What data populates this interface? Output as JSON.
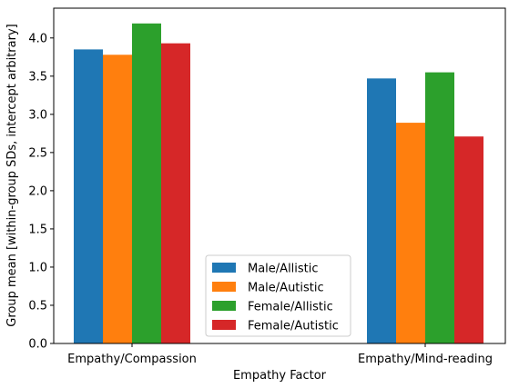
{
  "chart_data": {
    "type": "bar",
    "categories": [
      "Empathy/Compassion",
      "Empathy/Mind-reading"
    ],
    "series": [
      {
        "name": "Male/Allistic",
        "color": "#1f77b4",
        "values": [
          3.85,
          3.47
        ]
      },
      {
        "name": "Male/Autistic",
        "color": "#ff7f0e",
        "values": [
          3.78,
          2.89
        ]
      },
      {
        "name": "Female/Allistic",
        "color": "#2ca02c",
        "values": [
          4.19,
          3.55
        ]
      },
      {
        "name": "Female/Autistic",
        "color": "#d62728",
        "values": [
          3.93,
          2.71
        ]
      }
    ],
    "title": "",
    "xlabel": "Empathy Factor",
    "ylabel": "Group mean [within-group SDs, intercept arbitrary]",
    "ylim": [
      0,
      4.39
    ],
    "yticks": [
      "0.0",
      "0.5",
      "1.0",
      "1.5",
      "2.0",
      "2.5",
      "3.0",
      "3.5",
      "4.0"
    ],
    "grid": false,
    "legend_position": "lower-center"
  }
}
